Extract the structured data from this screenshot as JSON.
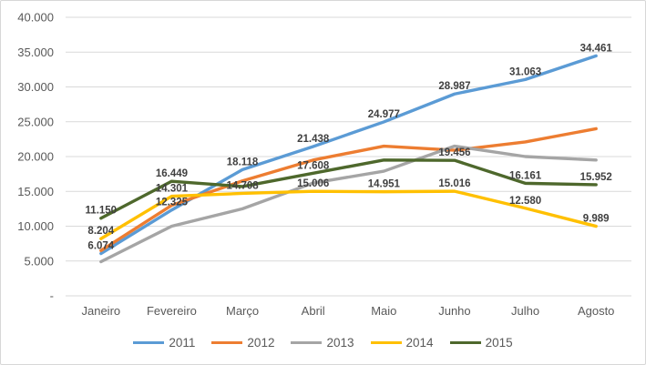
{
  "chart_data": {
    "type": "line",
    "title": "",
    "xlabel": "",
    "ylabel": "",
    "categories": [
      "Janeiro",
      "Fevereiro",
      "Março",
      "Abril",
      "Maio",
      "Junho",
      "Julho",
      "Agosto"
    ],
    "series": [
      {
        "name": "2011",
        "color": "#5B9BD5",
        "values": [
          6074,
          12325,
          18118,
          21438,
          24977,
          28987,
          31063,
          34461
        ],
        "labeled": [
          true,
          true,
          true,
          true,
          true,
          true,
          true,
          true
        ]
      },
      {
        "name": "2012",
        "color": "#ED7D31",
        "values": [
          6500,
          13000,
          16500,
          19500,
          21500,
          20900,
          22100,
          24000
        ],
        "labeled": [
          false,
          false,
          false,
          false,
          false,
          false,
          false,
          false
        ]
      },
      {
        "name": "2013",
        "color": "#A5A5A5",
        "values": [
          4900,
          10000,
          12500,
          16200,
          17900,
          21500,
          20000,
          19500
        ],
        "labeled": [
          false,
          false,
          false,
          false,
          false,
          false,
          false,
          false
        ]
      },
      {
        "name": "2014",
        "color": "#FFC000",
        "values": [
          8204,
          14301,
          14708,
          15006,
          14951,
          15016,
          12580,
          9989
        ],
        "labeled": [
          true,
          true,
          true,
          true,
          true,
          true,
          true,
          true
        ]
      },
      {
        "name": "2015",
        "color": "#4E682C",
        "values": [
          11150,
          16449,
          15700,
          17608,
          19500,
          19456,
          16161,
          15952
        ],
        "labeled": [
          true,
          true,
          false,
          true,
          false,
          true,
          true,
          true
        ]
      }
    ],
    "visible_data_labels": {
      "2011": [
        "6.074",
        "12.325",
        "18.118",
        "21.438",
        "24.977",
        "28.987",
        "31.063",
        "34.461"
      ],
      "2014": [
        "8.204",
        "14.301",
        "14.708",
        "15.006",
        "14.951",
        "15.016",
        "12.580",
        "9.989"
      ],
      "2015": [
        "11.150",
        "16.449",
        "17.608",
        "19.456",
        "16.161",
        "15.952"
      ]
    },
    "ylim": [
      0,
      40000
    ],
    "ytick_step": 5000,
    "ytick_labels_top_to_bottom": [
      "40.000",
      "35.000",
      "30.000",
      "25.000",
      "20.000",
      "15.000",
      "10.000",
      "5.000",
      "-"
    ],
    "grid": true,
    "legend_position": "bottom",
    "legend_entries": [
      "2011",
      "2012",
      "2013",
      "2014",
      "2015"
    ],
    "colors": {
      "gridline": "#D9D9D9",
      "axis_text": "#595959",
      "data_label_text": "#404040",
      "frame_border": "#D7D7D7"
    }
  }
}
